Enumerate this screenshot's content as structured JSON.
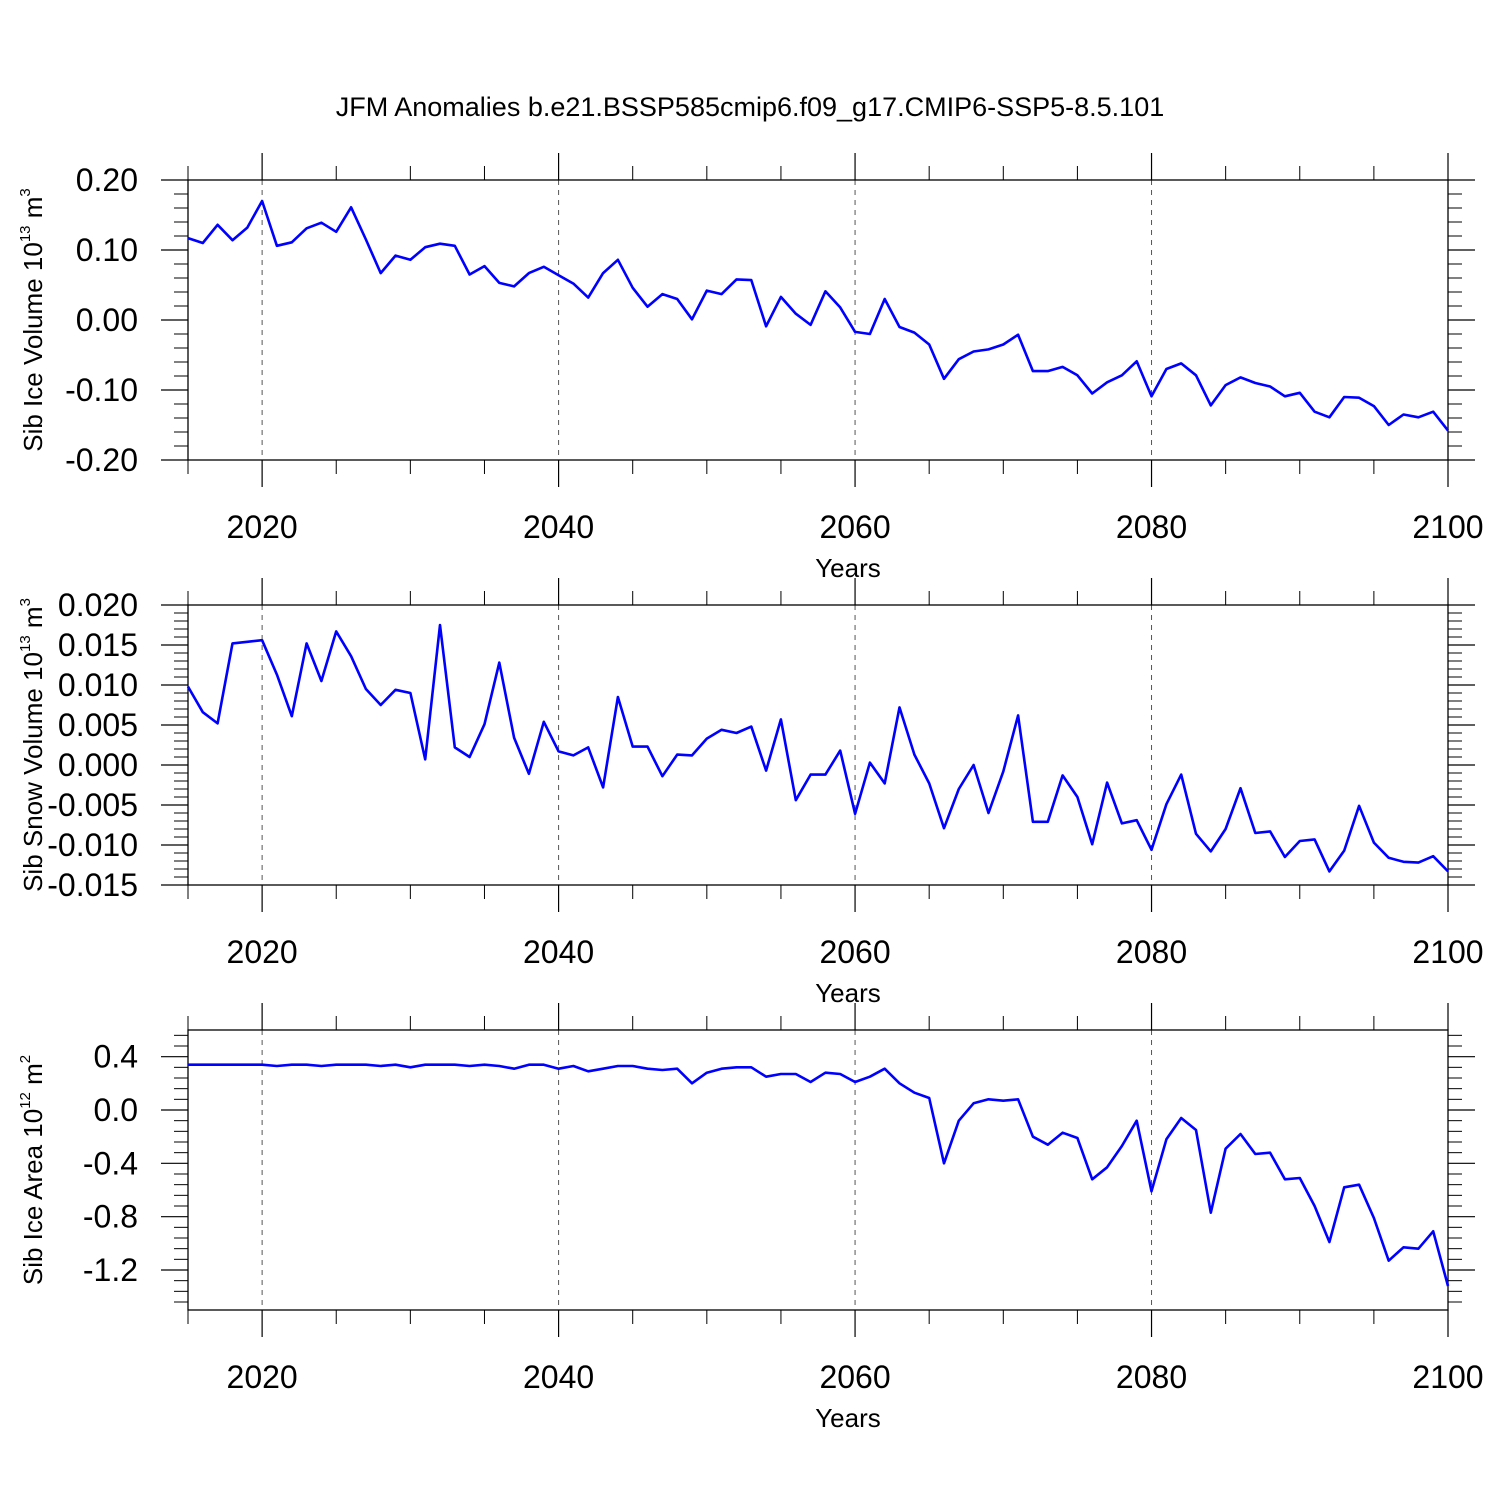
{
  "figure_title": "JFM Anomalies b.e21.BSSP585cmip6.f09_g17.CMIP6-SSP5-8.5.101",
  "chart_data": [
    {
      "type": "line",
      "xlabel": "Years",
      "ylabel": {
        "text": "Sib Ice Volume 10",
        "exponent": "13",
        "unit": "m",
        "unit_exponent": "3"
      },
      "xlim": [
        2015,
        2100
      ],
      "ylim": [
        -0.2,
        0.2
      ],
      "x_ticks": [
        "2020",
        "2040",
        "2060",
        "2080",
        "2100"
      ],
      "y_ticks": [
        "0.20",
        "0.10",
        "0.00",
        "-0.10",
        "-0.20"
      ],
      "grid": "vertical dashed at major x ticks",
      "series": [
        {
          "color": "#0000ff",
          "x": [
            2015,
            2016,
            2017,
            2018,
            2019,
            2020,
            2021,
            2022,
            2023,
            2024,
            2025,
            2026,
            2027,
            2028,
            2029,
            2030,
            2031,
            2032,
            2033,
            2034,
            2035,
            2036,
            2037,
            2038,
            2039,
            2040,
            2041,
            2042,
            2043,
            2044,
            2045,
            2046,
            2047,
            2048,
            2049,
            2050,
            2051,
            2052,
            2053,
            2054,
            2055,
            2056,
            2057,
            2058,
            2059,
            2060,
            2061,
            2062,
            2063,
            2064,
            2065,
            2066,
            2067,
            2068,
            2069,
            2070,
            2071,
            2072,
            2073,
            2074,
            2075,
            2076,
            2077,
            2078,
            2079,
            2080,
            2081,
            2082,
            2083,
            2084,
            2085,
            2086,
            2087,
            2088,
            2089,
            2090,
            2091,
            2092,
            2093,
            2094,
            2095,
            2096,
            2097,
            2098,
            2099,
            2100
          ],
          "values": [
            0.117,
            0.11,
            0.136,
            0.114,
            0.132,
            0.17,
            0.106,
            0.111,
            0.131,
            0.139,
            0.126,
            0.161,
            0.115,
            0.067,
            0.092,
            0.086,
            0.104,
            0.109,
            0.106,
            0.065,
            0.077,
            0.053,
            0.048,
            0.067,
            0.076,
            0.064,
            0.052,
            0.032,
            0.067,
            0.086,
            0.046,
            0.019,
            0.037,
            0.03,
            0.001,
            0.042,
            0.037,
            0.058,
            0.057,
            -0.009,
            0.033,
            0.009,
            -0.007,
            0.041,
            0.018,
            -0.017,
            -0.02,
            0.03,
            -0.01,
            -0.018,
            -0.035,
            -0.084,
            -0.056,
            -0.045,
            -0.042,
            -0.035,
            -0.021,
            -0.073,
            -0.073,
            -0.067,
            -0.079,
            -0.105,
            -0.089,
            -0.079,
            -0.059,
            -0.109,
            -0.07,
            -0.062,
            -0.079,
            -0.122,
            -0.093,
            -0.082,
            -0.09,
            -0.095,
            -0.109,
            -0.104,
            -0.131,
            -0.139,
            -0.11,
            -0.111,
            -0.123,
            -0.15,
            -0.135,
            -0.139,
            -0.131,
            -0.158
          ]
        }
      ]
    },
    {
      "type": "line",
      "xlabel": "Years",
      "ylabel": {
        "text": "Sib Snow Volume 10",
        "exponent": "13",
        "unit": "m",
        "unit_exponent": "3"
      },
      "xlim": [
        2015,
        2100
      ],
      "ylim": [
        -0.015,
        0.02
      ],
      "x_ticks": [
        "2020",
        "2040",
        "2060",
        "2080",
        "2100"
      ],
      "y_ticks": [
        "0.020",
        "0.015",
        "0.010",
        "0.005",
        "0.000",
        "-0.005",
        "-0.010",
        "-0.015"
      ],
      "grid": "vertical dashed at major x ticks",
      "series": [
        {
          "color": "#0000ff",
          "x": [
            2015,
            2016,
            2017,
            2018,
            2019,
            2020,
            2021,
            2022,
            2023,
            2024,
            2025,
            2026,
            2027,
            2028,
            2029,
            2030,
            2031,
            2032,
            2033,
            2034,
            2035,
            2036,
            2037,
            2038,
            2039,
            2040,
            2041,
            2042,
            2043,
            2044,
            2045,
            2046,
            2047,
            2048,
            2049,
            2050,
            2051,
            2052,
            2053,
            2054,
            2055,
            2056,
            2057,
            2058,
            2059,
            2060,
            2061,
            2062,
            2063,
            2064,
            2065,
            2066,
            2067,
            2068,
            2069,
            2070,
            2071,
            2072,
            2073,
            2074,
            2075,
            2076,
            2077,
            2078,
            2079,
            2080,
            2081,
            2082,
            2083,
            2084,
            2085,
            2086,
            2087,
            2088,
            2089,
            2090,
            2091,
            2092,
            2093,
            2094,
            2095,
            2096,
            2097,
            2098,
            2099,
            2100
          ],
          "values": [
            0.0098,
            0.0066,
            0.0052,
            0.0152,
            0.0154,
            0.0156,
            0.0113,
            0.0061,
            0.0152,
            0.0105,
            0.0167,
            0.0136,
            0.0095,
            0.0075,
            0.0094,
            0.009,
            0.0007,
            0.0175,
            0.0022,
            0.001,
            0.0051,
            0.0128,
            0.0034,
            -0.0011,
            0.0054,
            0.0017,
            0.0012,
            0.0022,
            -0.0028,
            0.0085,
            0.0023,
            0.0023,
            -0.0014,
            0.0013,
            0.0012,
            0.0033,
            0.0044,
            0.004,
            0.0048,
            -0.0007,
            0.0057,
            -0.0044,
            -0.0012,
            -0.0012,
            0.0018,
            -0.0061,
            0.0003,
            -0.0023,
            0.0072,
            0.0013,
            -0.0023,
            -0.0079,
            -0.003,
            0.0,
            -0.006,
            -0.0008,
            0.0062,
            -0.0071,
            -0.0071,
            -0.0013,
            -0.004,
            -0.0099,
            -0.0022,
            -0.0073,
            -0.0069,
            -0.0106,
            -0.0049,
            -0.0012,
            -0.0086,
            -0.0108,
            -0.008,
            -0.0029,
            -0.0085,
            -0.0083,
            -0.0115,
            -0.0095,
            -0.0093,
            -0.0133,
            -0.0107,
            -0.0051,
            -0.0097,
            -0.0116,
            -0.0121,
            -0.0122,
            -0.0114,
            -0.0133
          ]
        }
      ]
    },
    {
      "type": "line",
      "xlabel": "Years",
      "ylabel": {
        "text": "Sib Ice Area 10",
        "exponent": "12",
        "unit": "m",
        "unit_exponent": "2"
      },
      "xlim": [
        2015,
        2100
      ],
      "ylim": [
        -1.5,
        0.6
      ],
      "x_ticks": [
        "2020",
        "2040",
        "2060",
        "2080",
        "2100"
      ],
      "y_ticks": [
        "0.4",
        "0.0",
        "-0.4",
        "-0.8",
        "-1.2"
      ],
      "grid": "vertical dashed at major x ticks",
      "series": [
        {
          "color": "#0000ff",
          "x": [
            2015,
            2016,
            2017,
            2018,
            2019,
            2020,
            2021,
            2022,
            2023,
            2024,
            2025,
            2026,
            2027,
            2028,
            2029,
            2030,
            2031,
            2032,
            2033,
            2034,
            2035,
            2036,
            2037,
            2038,
            2039,
            2040,
            2041,
            2042,
            2043,
            2044,
            2045,
            2046,
            2047,
            2048,
            2049,
            2050,
            2051,
            2052,
            2053,
            2054,
            2055,
            2056,
            2057,
            2058,
            2059,
            2060,
            2061,
            2062,
            2063,
            2064,
            2065,
            2066,
            2067,
            2068,
            2069,
            2070,
            2071,
            2072,
            2073,
            2074,
            2075,
            2076,
            2077,
            2078,
            2079,
            2080,
            2081,
            2082,
            2083,
            2084,
            2085,
            2086,
            2087,
            2088,
            2089,
            2090,
            2091,
            2092,
            2093,
            2094,
            2095,
            2096,
            2097,
            2098,
            2099,
            2100
          ],
          "values": [
            0.34,
            0.34,
            0.34,
            0.34,
            0.34,
            0.34,
            0.33,
            0.34,
            0.34,
            0.33,
            0.34,
            0.34,
            0.34,
            0.33,
            0.34,
            0.32,
            0.34,
            0.34,
            0.34,
            0.33,
            0.34,
            0.33,
            0.31,
            0.34,
            0.34,
            0.31,
            0.33,
            0.29,
            0.31,
            0.33,
            0.33,
            0.31,
            0.3,
            0.31,
            0.2,
            0.28,
            0.31,
            0.32,
            0.32,
            0.25,
            0.27,
            0.27,
            0.21,
            0.28,
            0.27,
            0.21,
            0.25,
            0.31,
            0.2,
            0.13,
            0.09,
            -0.4,
            -0.08,
            0.05,
            0.08,
            0.07,
            0.08,
            -0.2,
            -0.26,
            -0.17,
            -0.21,
            -0.52,
            -0.43,
            -0.27,
            -0.08,
            -0.61,
            -0.22,
            -0.06,
            -0.15,
            -0.77,
            -0.29,
            -0.18,
            -0.33,
            -0.32,
            -0.52,
            -0.51,
            -0.72,
            -0.99,
            -0.58,
            -0.56,
            -0.81,
            -1.13,
            -1.03,
            -1.04,
            -0.91,
            -1.32
          ]
        }
      ]
    }
  ]
}
